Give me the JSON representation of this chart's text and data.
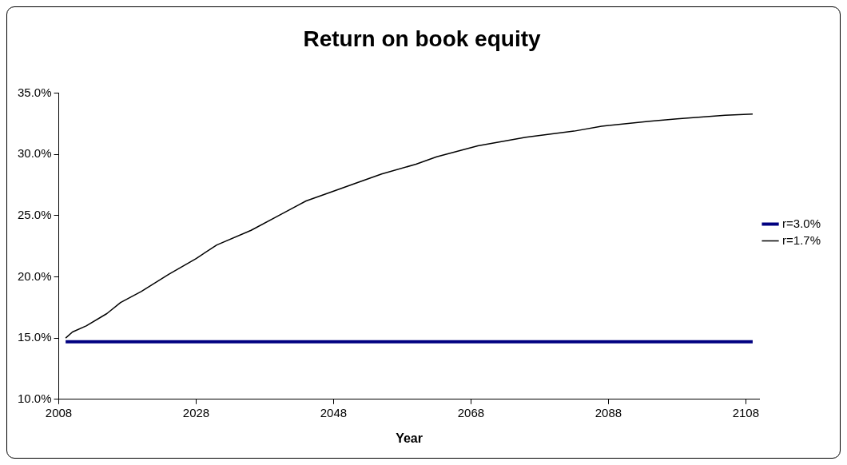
{
  "chart_data": {
    "type": "line",
    "title": "Return on book equity",
    "xlabel": "Year",
    "xlim": [
      2008,
      2110
    ],
    "xticks": [
      2008,
      2028,
      2048,
      2068,
      2088,
      2108
    ],
    "ylim": [
      10,
      35
    ],
    "yticks": [
      {
        "value": 10,
        "label": "10.0%"
      },
      {
        "value": 15,
        "label": "15.0%"
      },
      {
        "value": 20,
        "label": "20.0%"
      },
      {
        "value": 25,
        "label": "25.0%"
      },
      {
        "value": 30,
        "label": "30.0%"
      },
      {
        "value": 35,
        "label": "35.0%"
      }
    ],
    "grid": false,
    "legend": "right",
    "marker": "none",
    "series": [
      {
        "name": "r=3.0%",
        "color": "#000080",
        "x": [
          2009,
          2109
        ],
        "values": [
          14.7,
          14.7
        ]
      },
      {
        "name": "r=1.7%",
        "color": "#000000",
        "x": [
          2009,
          2010,
          2012,
          2015,
          2017,
          2020,
          2024,
          2028,
          2031,
          2036,
          2040,
          2044,
          2048,
          2051,
          2055,
          2060,
          2063,
          2069,
          2076,
          2083,
          2087,
          2094,
          2098,
          2105,
          2109
        ],
        "values": [
          15.0,
          15.5,
          16.0,
          17.0,
          17.9,
          18.8,
          20.2,
          21.5,
          22.6,
          23.8,
          25.0,
          26.2,
          27.0,
          27.6,
          28.4,
          29.2,
          29.8,
          30.7,
          31.4,
          31.9,
          32.3,
          32.7,
          32.9,
          33.2,
          33.3
        ]
      }
    ]
  }
}
